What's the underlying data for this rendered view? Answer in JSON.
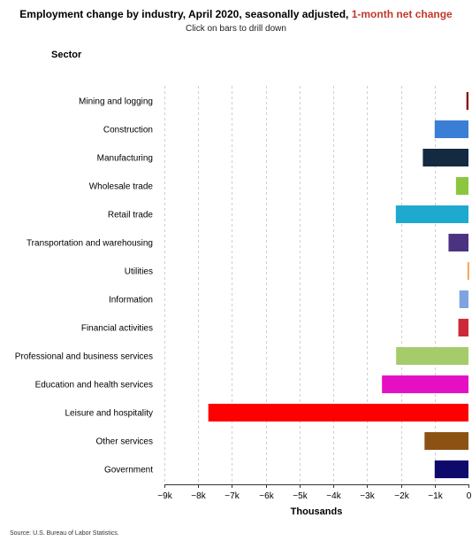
{
  "header": {
    "title_main": "Employment change by industry, April 2020, seasonally adjusted, ",
    "title_accent": "1-month net change",
    "subtitle": "Click on bars to drill down"
  },
  "axis": {
    "y_title": "Sector",
    "x_title": "Thousands"
  },
  "footer": {
    "source": "Source: U.S. Bureau of Labor Statistics."
  },
  "chart_data": {
    "type": "bar",
    "orientation": "horizontal",
    "title": "Employment change by industry, April 2020, seasonally adjusted, 1-month net change",
    "subtitle": "Click on bars to drill down",
    "xlabel": "Thousands",
    "ylabel": "Sector",
    "xlim": [
      -9000,
      0
    ],
    "x_ticks": [
      -9000,
      -8000,
      -7000,
      -6000,
      -5000,
      -4000,
      -3000,
      -2000,
      -1000,
      0
    ],
    "x_tick_labels": [
      "−9k",
      "−8k",
      "−7k",
      "−6k",
      "−5k",
      "−4k",
      "−3k",
      "−2k",
      "−1k",
      "0"
    ],
    "grid": "vertical dashed",
    "categories": [
      "Mining and logging",
      "Construction",
      "Manufacturing",
      "Wholesale trade",
      "Retail trade",
      "Transportation and warehousing",
      "Utilities",
      "Information",
      "Financial activities",
      "Professional and business services",
      "Education and health services",
      "Leisure and hospitality",
      "Other services",
      "Government"
    ],
    "values": [
      -60,
      -1000,
      -1350,
      -370,
      -2150,
      -590,
      -30,
      -270,
      -300,
      -2140,
      -2560,
      -7700,
      -1300,
      -1000
    ],
    "colors": [
      "#8b0000",
      "#3a7fd5",
      "#132a40",
      "#8cc63f",
      "#1ea9cf",
      "#4b3381",
      "#f6a35b",
      "#7ea3e3",
      "#cc2a3a",
      "#a5cb6b",
      "#e510c4",
      "#ff0000",
      "#8b5213",
      "#0e0a6b"
    ]
  }
}
